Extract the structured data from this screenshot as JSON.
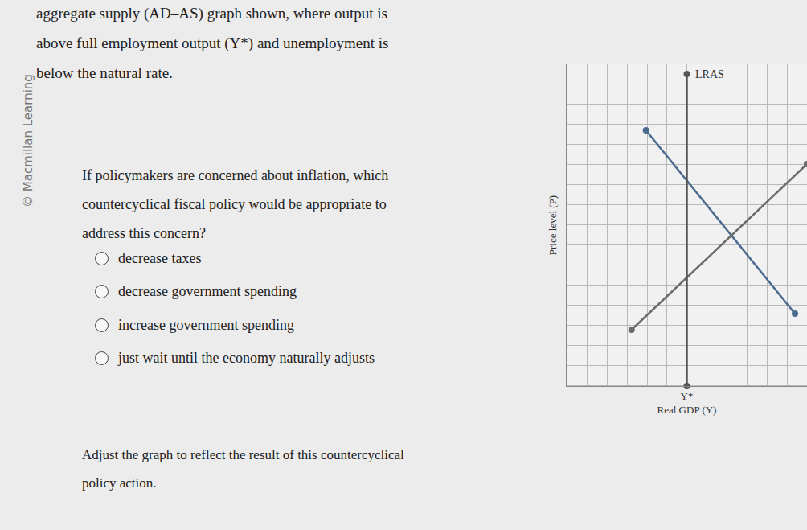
{
  "intro": [
    "aggregate supply (AD–AS) graph shown, where output is",
    "above full employment output (Y*) and unemployment is",
    "below the natural rate."
  ],
  "watermark": "© Macmillan Learning",
  "question": [
    "If policymakers are concerned about inflation, which",
    "countercyclical fiscal policy would be appropriate to",
    "address this concern?"
  ],
  "options": [
    "decrease taxes",
    "decrease government spending",
    "increase government spending",
    "just wait until the economy naturally adjusts"
  ],
  "instruction": [
    "Adjust the graph to reflect the result of this countercyclical",
    "policy action."
  ],
  "chart_data": {
    "type": "line",
    "xlabel": "Real GDP (Y)",
    "ylabel": "Price level (P)",
    "xlim": [
      0,
      10
    ],
    "ylim": [
      0,
      10
    ],
    "xticks": [
      {
        "value": 5,
        "label": "Y*"
      }
    ],
    "yticks": [],
    "tick_labels": "x",
    "grid": true,
    "series": [
      {
        "color": "#4a6a8f",
        "marker": "circle",
        "x": [
          3.3,
          9.5
        ],
        "values": [
          7.95,
          2.25
        ]
      },
      {
        "color": "#6b6b6b",
        "marker": "circle",
        "x": [
          2.7,
          10
        ],
        "values": [
          1.75,
          6.9
        ]
      },
      {
        "name": "LRAS",
        "color": "#555555",
        "marker": "circle",
        "x": [
          5,
          5
        ],
        "values": [
          0,
          9.7
        ]
      }
    ]
  }
}
